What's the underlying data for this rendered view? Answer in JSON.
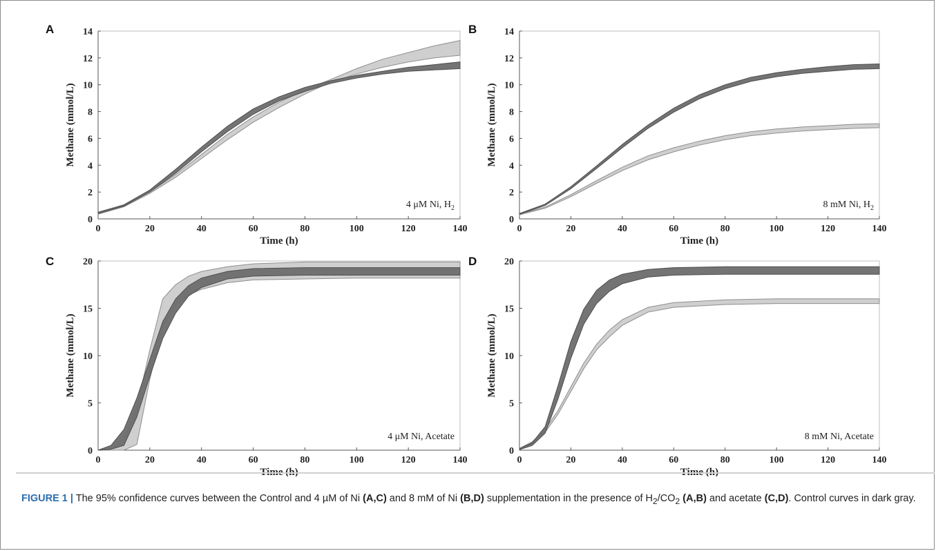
{
  "figure": {
    "caption": {
      "label": "FIGURE 1 |",
      "parts": [
        {
          "t": " The 95% confidence curves between the Control and 4 ",
          "b": false
        },
        {
          "t": "µ",
          "b": false
        },
        {
          "t": "M of Ni ",
          "b": false
        },
        {
          "t": "(A,C)",
          "b": true
        },
        {
          "t": " and 8 mM of Ni ",
          "b": false
        },
        {
          "t": "(B,D)",
          "b": true
        },
        {
          "t": " supplementation in the presence of H",
          "b": false
        },
        {
          "t": "2",
          "b": false,
          "sub": true
        },
        {
          "t": "/CO",
          "b": false
        },
        {
          "t": "2",
          "b": false,
          "sub": true
        },
        {
          "t": " ",
          "b": false
        },
        {
          "t": "(A,B)",
          "b": true
        },
        {
          "t": " and acetate ",
          "b": false
        },
        {
          "t": "(C,D)",
          "b": true
        },
        {
          "t": ". Control curves in dark gray.",
          "b": false
        }
      ]
    }
  },
  "chart_data": [
    {
      "panel": "A",
      "type": "area",
      "annotation": {
        "text": "4 μM Ni, H",
        "sub": "2"
      },
      "xlabel": "Time (h)",
      "ylabel": "Methane (mmol/L)",
      "xlim": [
        0,
        140
      ],
      "ylim": [
        0,
        14
      ],
      "xticks": [
        0,
        20,
        40,
        60,
        80,
        100,
        120,
        140
      ],
      "yticks": [
        0,
        2,
        4,
        6,
        8,
        10,
        12,
        14
      ],
      "colors": {
        "control": "#6d6d6d",
        "treatment": "#cfcfcf"
      },
      "series": [
        {
          "role": "treatment",
          "x": [
            0,
            10,
            20,
            30,
            40,
            50,
            60,
            70,
            80,
            90,
            100,
            110,
            120,
            130,
            140
          ],
          "lower": [
            0.35,
            0.9,
            1.9,
            3.1,
            4.5,
            5.9,
            7.2,
            8.3,
            9.3,
            10.2,
            10.8,
            11.3,
            11.7,
            12.0,
            12.2
          ],
          "upper": [
            0.45,
            1.0,
            2.0,
            3.3,
            4.8,
            6.3,
            7.6,
            8.7,
            9.6,
            10.4,
            11.2,
            11.9,
            12.4,
            12.9,
            13.3
          ]
        },
        {
          "role": "control",
          "x": [
            0,
            10,
            20,
            30,
            40,
            50,
            60,
            70,
            80,
            90,
            100,
            110,
            120,
            130,
            140
          ],
          "lower": [
            0.4,
            0.95,
            2.0,
            3.4,
            5.0,
            6.5,
            7.8,
            8.8,
            9.5,
            10.1,
            10.5,
            10.8,
            11.0,
            11.1,
            11.2
          ],
          "upper": [
            0.5,
            1.05,
            2.15,
            3.7,
            5.35,
            6.9,
            8.2,
            9.1,
            9.8,
            10.3,
            10.7,
            11.0,
            11.3,
            11.5,
            11.7
          ]
        }
      ]
    },
    {
      "panel": "B",
      "type": "area",
      "annotation": {
        "text": "8 mM Ni, H",
        "sub": "2"
      },
      "xlabel": "Time (h)",
      "ylabel": "Methane (mmol/L)",
      "xlim": [
        0,
        140
      ],
      "ylim": [
        0,
        14
      ],
      "xticks": [
        0,
        20,
        40,
        60,
        80,
        100,
        120,
        140
      ],
      "yticks": [
        0,
        2,
        4,
        6,
        8,
        10,
        12,
        14
      ],
      "colors": {
        "control": "#6d6d6d",
        "treatment": "#cfcfcf"
      },
      "series": [
        {
          "role": "treatment",
          "x": [
            0,
            10,
            20,
            30,
            40,
            50,
            60,
            70,
            80,
            90,
            100,
            110,
            120,
            130,
            140
          ],
          "lower": [
            0.3,
            0.8,
            1.65,
            2.65,
            3.6,
            4.4,
            5.0,
            5.5,
            5.9,
            6.2,
            6.4,
            6.55,
            6.65,
            6.75,
            6.8
          ],
          "upper": [
            0.35,
            0.88,
            1.8,
            2.85,
            3.85,
            4.7,
            5.3,
            5.8,
            6.2,
            6.5,
            6.7,
            6.85,
            6.95,
            7.05,
            7.1
          ]
        },
        {
          "role": "control",
          "x": [
            0,
            10,
            20,
            30,
            40,
            50,
            60,
            70,
            80,
            90,
            100,
            110,
            120,
            130,
            140
          ],
          "lower": [
            0.35,
            1.0,
            2.25,
            3.75,
            5.3,
            6.75,
            7.95,
            8.95,
            9.7,
            10.25,
            10.6,
            10.85,
            11.0,
            11.15,
            11.2
          ],
          "upper": [
            0.4,
            1.1,
            2.4,
            3.95,
            5.55,
            7.0,
            8.25,
            9.25,
            10.0,
            10.55,
            10.9,
            11.15,
            11.35,
            11.5,
            11.55
          ]
        }
      ]
    },
    {
      "panel": "C",
      "type": "area",
      "annotation": {
        "text": "4 μM Ni, Acetate",
        "sub": ""
      },
      "xlabel": "Time (h)",
      "ylabel": "Methane (mmol/L)",
      "xlim": [
        0,
        140
      ],
      "ylim": [
        0,
        20
      ],
      "xticks": [
        0,
        20,
        40,
        60,
        80,
        100,
        120,
        140
      ],
      "yticks": [
        0,
        5,
        10,
        15,
        20
      ],
      "colors": {
        "control": "#6d6d6d",
        "treatment": "#cfcfcf"
      },
      "series": [
        {
          "role": "treatment",
          "x": [
            0,
            5,
            10,
            15,
            20,
            25,
            30,
            35,
            40,
            50,
            60,
            80,
            100,
            120,
            140
          ],
          "lower": [
            0,
            0,
            0,
            0.6,
            7.5,
            13.0,
            15.3,
            16.4,
            17.0,
            17.7,
            18.0,
            18.1,
            18.2,
            18.2,
            18.2
          ],
          "upper": [
            0,
            0.1,
            1.2,
            4.6,
            10.6,
            16.0,
            17.5,
            18.4,
            18.9,
            19.4,
            19.7,
            19.9,
            19.9,
            19.9,
            19.9
          ]
        },
        {
          "role": "control",
          "x": [
            0,
            5,
            10,
            15,
            20,
            25,
            30,
            35,
            40,
            50,
            60,
            80,
            100,
            120,
            140
          ],
          "lower": [
            0,
            0.1,
            0.5,
            3.5,
            7.8,
            11.8,
            14.5,
            16.3,
            17.2,
            18.1,
            18.4,
            18.5,
            18.5,
            18.5,
            18.5
          ],
          "upper": [
            0,
            0.5,
            2.2,
            5.5,
            9.6,
            13.6,
            16.0,
            17.4,
            18.2,
            18.9,
            19.2,
            19.3,
            19.3,
            19.3,
            19.3
          ]
        }
      ]
    },
    {
      "panel": "D",
      "type": "area",
      "annotation": {
        "text": "8 mM Ni, Acetate",
        "sub": ""
      },
      "xlabel": "Time (h)",
      "ylabel": "Methane (mmol/L)",
      "xlim": [
        0,
        140
      ],
      "ylim": [
        0,
        20
      ],
      "xticks": [
        0,
        20,
        40,
        60,
        80,
        100,
        120,
        140
      ],
      "yticks": [
        0,
        5,
        10,
        15,
        20
      ],
      "colors": {
        "control": "#6d6d6d",
        "treatment": "#cfcfcf"
      },
      "series": [
        {
          "role": "treatment",
          "x": [
            0,
            5,
            10,
            15,
            20,
            25,
            30,
            35,
            40,
            50,
            60,
            80,
            100,
            120,
            140
          ],
          "lower": [
            0.1,
            0.7,
            1.9,
            3.8,
            6.2,
            8.6,
            10.6,
            12.0,
            13.2,
            14.6,
            15.1,
            15.4,
            15.5,
            15.5,
            15.5
          ],
          "upper": [
            0.2,
            0.9,
            2.2,
            4.2,
            6.7,
            9.2,
            11.2,
            12.7,
            13.8,
            15.1,
            15.6,
            15.9,
            16.0,
            16.0,
            16.0
          ]
        },
        {
          "role": "control",
          "x": [
            0,
            5,
            10,
            15,
            20,
            25,
            30,
            35,
            40,
            50,
            60,
            80,
            100,
            120,
            140
          ],
          "lower": [
            0.05,
            0.5,
            1.8,
            5.4,
            9.7,
            13.3,
            15.5,
            16.8,
            17.6,
            18.3,
            18.5,
            18.6,
            18.6,
            18.6,
            18.6
          ],
          "upper": [
            0.15,
            0.8,
            2.5,
            6.8,
            11.5,
            14.9,
            16.9,
            18.0,
            18.6,
            19.1,
            19.3,
            19.4,
            19.4,
            19.4,
            19.4
          ]
        }
      ]
    }
  ]
}
